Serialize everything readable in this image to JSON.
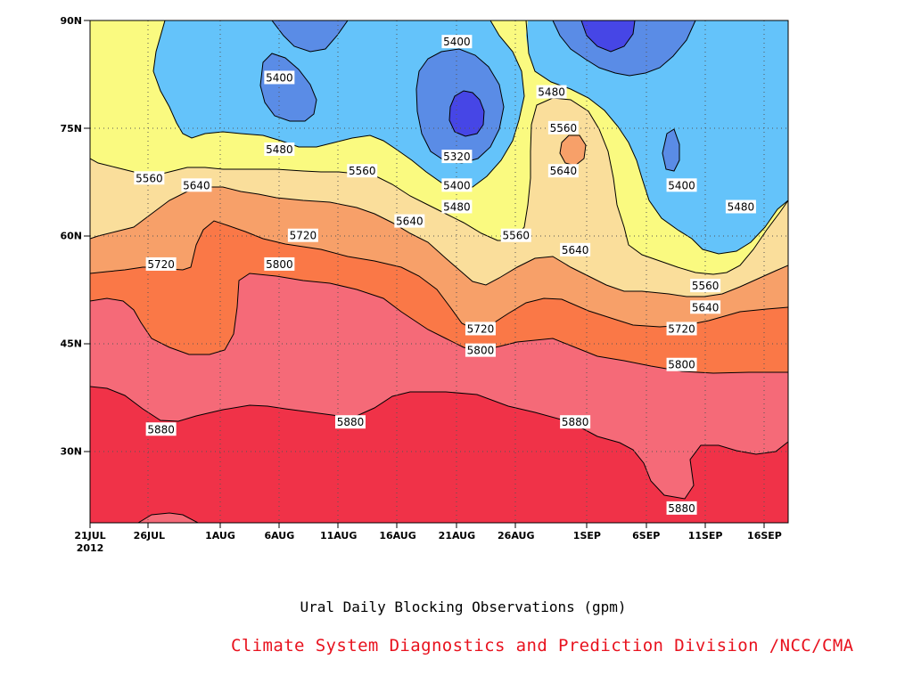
{
  "caption": "Ural Daily Blocking Observations (gpm)",
  "credit": "Climate System Diagnostics and Prediction Division /NCC/CMA",
  "chart_data": {
    "type": "filled-contour (latitude-time Hovmoller)",
    "xlabel": "",
    "ylabel": "",
    "x_ticks": [
      "21JUL",
      "26JUL",
      "1AUG",
      "6AUG",
      "11AUG",
      "16AUG",
      "21AUG",
      "26AUG",
      "1SEP",
      "6SEP",
      "11SEP",
      "16SEP"
    ],
    "x_year_label": "2012",
    "y_ticks": [
      "30N",
      "45N",
      "60N",
      "75N",
      "90N"
    ],
    "ylim": [
      20,
      90
    ],
    "grid": "dotted",
    "contour_levels": [
      5320,
      5400,
      5480,
      5560,
      5640,
      5720,
      5800,
      5880
    ],
    "fill_colors": [
      "#4646e6",
      "#5a8ce6",
      "#64c3fa",
      "#fafa80",
      "#fade9b",
      "#f7a069",
      "#fa7847",
      "#f56a78",
      "#f03248"
    ],
    "contour_labels": [
      {
        "text": "5400",
        "x": "6AUG",
        "y": 82
      },
      {
        "text": "5400",
        "x": "21AUG",
        "y": 87
      },
      {
        "text": "5480",
        "x": "29AUG",
        "y": 80
      },
      {
        "text": "5560",
        "x": "30AUG",
        "y": 75
      },
      {
        "text": "5320",
        "x": "21AUG",
        "y": 71
      },
      {
        "text": "5640",
        "x": "30AUG",
        "y": 69
      },
      {
        "text": "5480",
        "x": "6AUG",
        "y": 72
      },
      {
        "text": "5400",
        "x": "21AUG",
        "y": 67
      },
      {
        "text": "5400",
        "x": "9SEP",
        "y": 67
      },
      {
        "text": "5560",
        "x": "26JUL",
        "y": 68
      },
      {
        "text": "5560",
        "x": "13AUG",
        "y": 69
      },
      {
        "text": "5640",
        "x": "30JUL",
        "y": 67
      },
      {
        "text": "5480",
        "x": "21AUG",
        "y": 64
      },
      {
        "text": "5480",
        "x": "14SEP",
        "y": 64
      },
      {
        "text": "5640",
        "x": "17AUG",
        "y": 62
      },
      {
        "text": "5720",
        "x": "8AUG",
        "y": 60
      },
      {
        "text": "5560",
        "x": "26AUG",
        "y": 60
      },
      {
        "text": "5640",
        "x": "31AUG",
        "y": 58
      },
      {
        "text": "5720",
        "x": "27JUL",
        "y": 56
      },
      {
        "text": "5800",
        "x": "6AUG",
        "y": 56
      },
      {
        "text": "5560",
        "x": "11SEP",
        "y": 53
      },
      {
        "text": "5640",
        "x": "11SEP",
        "y": 50
      },
      {
        "text": "5720",
        "x": "23AUG",
        "y": 47
      },
      {
        "text": "5720",
        "x": "9SEP",
        "y": 47
      },
      {
        "text": "5800",
        "x": "23AUG",
        "y": 44
      },
      {
        "text": "5800",
        "x": "9SEP",
        "y": 42
      },
      {
        "text": "5880",
        "x": "27JUL",
        "y": 33
      },
      {
        "text": "5880",
        "x": "12AUG",
        "y": 34
      },
      {
        "text": "5880",
        "x": "31AUG",
        "y": 34
      },
      {
        "text": "5880",
        "x": "9SEP",
        "y": 22
      }
    ]
  }
}
